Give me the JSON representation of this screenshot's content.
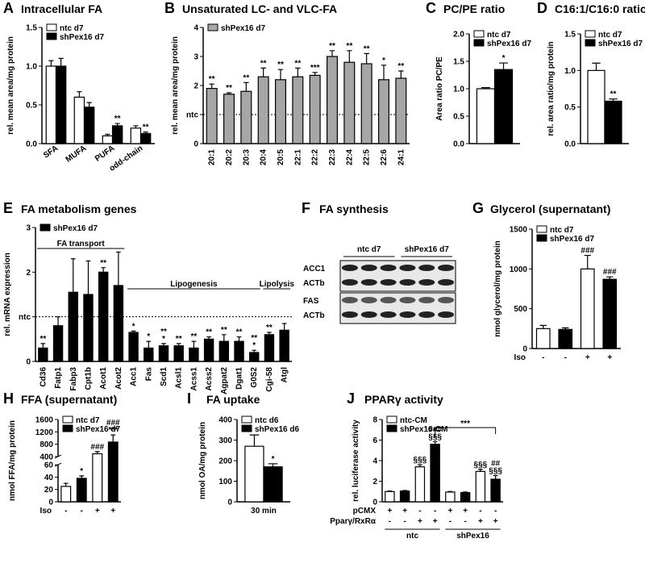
{
  "chart_data": [
    {
      "panel": "A",
      "type": "bar",
      "title": "Intracellular FA",
      "ylabel": "rel. mean area/mg protein",
      "categories": [
        "SFA",
        "MUFA",
        "PUFA",
        "odd-chain"
      ],
      "series": [
        {
          "name": "ntc d7",
          "color": "#ffffff",
          "values": [
            1.0,
            0.6,
            0.1,
            0.2
          ],
          "errors": [
            0.07,
            0.07,
            0.02,
            0.03
          ],
          "annotations": [
            null,
            null,
            null,
            null
          ]
        },
        {
          "name": "shPex16 d7",
          "color": "#000000",
          "values": [
            1.0,
            0.47,
            0.23,
            0.13
          ],
          "errors": [
            0.1,
            0.06,
            0.03,
            0.02
          ],
          "annotations": [
            null,
            null,
            [
              "**"
            ],
            [
              "**"
            ]
          ]
        }
      ],
      "ylim": [
        0,
        1.5
      ],
      "yticks": [
        {
          "value": 0,
          "label": "0.0"
        },
        {
          "value": 0.5,
          "label": "0.5"
        },
        {
          "value": 1,
          "label": "1.0"
        },
        {
          "value": 1.5,
          "label": "1.5"
        }
      ],
      "legend": "upper left"
    },
    {
      "panel": "B",
      "type": "bar",
      "title": "Unsaturated LC- and VLC-FA",
      "ylabel": "rel. mean area/mg protein",
      "categories": [
        "20:1",
        "20:2",
        "20:3",
        "20:4",
        "20:5",
        "22:1",
        "22:2",
        "22:3",
        "22:4",
        "22:5",
        "22:6",
        "24:1"
      ],
      "series": [
        {
          "name": "shPex16 d7",
          "color": "#a6a6a6",
          "values": [
            1.9,
            1.7,
            1.8,
            2.3,
            2.2,
            2.3,
            2.35,
            3.0,
            2.8,
            2.75,
            2.2,
            2.25
          ],
          "errors": [
            0.15,
            0.05,
            0.3,
            0.3,
            0.35,
            0.3,
            0.1,
            0.2,
            0.4,
            0.35,
            0.5,
            0.25
          ],
          "annotations": [
            [
              "**"
            ],
            [
              "**"
            ],
            [
              "**"
            ],
            [
              "**"
            ],
            [
              "**"
            ],
            [
              "**"
            ],
            [
              "***"
            ],
            [
              "**"
            ],
            [
              "**"
            ],
            [
              "**"
            ],
            [
              "*"
            ],
            [
              "**"
            ]
          ]
        }
      ],
      "ylim": [
        0,
        4
      ],
      "yticks": [
        0,
        {
          "value": 1,
          "label": "ntc"
        },
        2,
        3,
        4
      ],
      "reference_line": 1,
      "legend": "upper left"
    },
    {
      "panel": "C",
      "type": "bar",
      "title": "PC/PE ratio",
      "ylabel": "Area ratio PC/PE",
      "categories": [
        null
      ],
      "series": [
        {
          "name": "ntc d7",
          "color": "#ffffff",
          "values": [
            1.0
          ],
          "errors": [
            0.02
          ],
          "annotations": [
            null
          ]
        },
        {
          "name": "shPex16 d7",
          "color": "#000000",
          "values": [
            1.35
          ],
          "errors": [
            0.12
          ],
          "annotations": [
            [
              "*"
            ]
          ]
        }
      ],
      "ylim": [
        0,
        2
      ],
      "yticks": [
        {
          "value": 0,
          "label": "0.0"
        },
        {
          "value": 0.5,
          "label": "0.5"
        },
        {
          "value": 1,
          "label": "1.0"
        },
        {
          "value": 1.5,
          "label": "1.5"
        },
        {
          "value": 2,
          "label": "2.0"
        }
      ],
      "legend": "upper left"
    },
    {
      "panel": "D",
      "type": "bar",
      "title": "C16:1/C16:0 ratio",
      "ylabel": "rel. area ratio/mg protein",
      "categories": [
        null
      ],
      "series": [
        {
          "name": "ntc d7",
          "color": "#ffffff",
          "values": [
            1.0
          ],
          "errors": [
            0.1
          ],
          "annotations": [
            null
          ]
        },
        {
          "name": "shPex16 d7",
          "color": "#000000",
          "values": [
            0.58
          ],
          "errors": [
            0.03
          ],
          "annotations": [
            [
              "**"
            ]
          ]
        }
      ],
      "ylim": [
        0,
        1.5
      ],
      "yticks": [
        {
          "value": 0,
          "label": "0.0"
        },
        {
          "value": 0.5,
          "label": "0.5"
        },
        {
          "value": 1,
          "label": "1.0"
        },
        {
          "value": 1.5,
          "label": "1.5"
        }
      ],
      "legend": "upper left"
    },
    {
      "panel": "E",
      "type": "bar",
      "title": "FA metabolism genes",
      "ylabel": "rel. mRNA expression",
      "categories": [
        "Cd36",
        "Fatp1",
        "Fabp3",
        "Cpt1b",
        "Acot1",
        "Acot2",
        "Acc1",
        "Fas",
        "Scd1",
        "Acsl1",
        "Acss1",
        "Acss2",
        "Agpat2",
        "Dgat1",
        "G0S2",
        "Cgi-58",
        "Atgl"
      ],
      "series": [
        {
          "name": "shPex16 d7",
          "color": "#000000",
          "values": [
            0.3,
            0.8,
            1.55,
            1.5,
            2.0,
            1.7,
            0.65,
            0.3,
            0.35,
            0.35,
            0.3,
            0.5,
            0.45,
            0.45,
            0.2,
            0.6,
            0.7
          ],
          "errors": [
            0.1,
            0.2,
            0.75,
            0.75,
            0.1,
            0.75,
            0.03,
            0.15,
            0.05,
            0.05,
            0.15,
            0.05,
            0.15,
            0.1,
            0.05,
            0.05,
            0.15
          ],
          "annotations": [
            [
              "**"
            ],
            null,
            null,
            null,
            [
              "**"
            ],
            null,
            [
              "*"
            ],
            [
              "*"
            ],
            [
              "**",
              "*"
            ],
            [
              "**"
            ],
            [
              "**"
            ],
            [
              "**"
            ],
            [
              "**"
            ],
            [
              "**"
            ],
            [
              "**",
              "*"
            ],
            [
              "**"
            ],
            null
          ]
        }
      ],
      "groups": [
        {
          "label": "FA transport",
          "from": 0,
          "to": 5
        },
        {
          "label": "Lipogenesis",
          "from": 6,
          "to": 14
        },
        {
          "label": "Lipolysis",
          "from": 15,
          "to": 16
        }
      ],
      "ylim": [
        0,
        3
      ],
      "yticks": [
        0,
        {
          "value": 1,
          "label": "ntc"
        },
        2,
        3
      ],
      "reference_line": 1,
      "legend": "upper left"
    },
    {
      "panel": "F",
      "type": "blot",
      "title": "FA synthesis",
      "lane_groups": [
        "ntc d7",
        "shPex16 d7"
      ],
      "rows": [
        "ACC1",
        "ACTb",
        "FAS",
        "ACTb"
      ]
    },
    {
      "panel": "G",
      "type": "bar",
      "title": "Glycerol (supernatant)",
      "ylabel": "nmol glycerol/mg protein",
      "categories": [
        null,
        null,
        null,
        null
      ],
      "x_rows": [
        {
          "label": "Iso",
          "values": [
            "-",
            "-",
            "+",
            "+"
          ]
        }
      ],
      "series": [
        {
          "name": "ntc d7",
          "color": "#ffffff",
          "values": [
            250,
            null,
            1000,
            null
          ],
          "errors": [
            40,
            null,
            170,
            null
          ],
          "annotations": [
            null,
            null,
            [
              "###"
            ],
            null
          ]
        },
        {
          "name": "shPex16 d7",
          "color": "#000000",
          "values": [
            null,
            240,
            null,
            870
          ],
          "errors": [
            null,
            20,
            null,
            30
          ],
          "annotations": [
            null,
            null,
            null,
            [
              "###"
            ]
          ]
        }
      ],
      "ylim": [
        0,
        1500
      ],
      "yticks": [
        0,
        500,
        1000,
        1500
      ],
      "legend": "upper left"
    },
    {
      "panel": "H",
      "type": "bar",
      "title": "FFA (supernatant)",
      "ylabel": "nmol FFA/mg protein",
      "categories": [
        null,
        null,
        null,
        null
      ],
      "x_rows": [
        {
          "label": "Iso",
          "values": [
            "-",
            "-",
            "+",
            "+"
          ]
        }
      ],
      "series": [
        {
          "name": "ntc d7",
          "color": "#ffffff",
          "values": [
            25,
            null,
            490,
            null
          ],
          "errors": [
            5,
            null,
            70,
            null
          ],
          "annotations": [
            null,
            null,
            [
              "###"
            ],
            null
          ]
        },
        {
          "name": "shPex16 d7",
          "color": "#000000",
          "values": [
            null,
            38,
            null,
            870
          ],
          "errors": [
            null,
            4,
            null,
            230
          ],
          "annotations": [
            null,
            [
              "*"
            ],
            null,
            [
              "###",
              "***"
            ]
          ]
        }
      ],
      "ylim": [
        0,
        1600
      ],
      "axis_break": [
        60,
        400
      ],
      "yticks": [
        0,
        20,
        40,
        60,
        400,
        800,
        1200,
        1600
      ],
      "legend": "upper left"
    },
    {
      "panel": "I",
      "type": "bar",
      "title": "FA uptake",
      "ylabel": "nmol OA/mg protein",
      "categories": [
        "30 min"
      ],
      "series": [
        {
          "name": "ntc d6",
          "color": "#ffffff",
          "values": [
            270
          ],
          "errors": [
            55
          ],
          "annotations": [
            null
          ]
        },
        {
          "name": "shPex16 d6",
          "color": "#000000",
          "values": [
            170
          ],
          "errors": [
            15
          ],
          "annotations": [
            [
              "*"
            ]
          ]
        }
      ],
      "ylim": [
        0,
        400
      ],
      "yticks": [
        0,
        100,
        200,
        300,
        400
      ],
      "legend": "upper left"
    },
    {
      "panel": "J",
      "type": "bar",
      "title": "PPARγ activity",
      "ylabel": "rel. luciferase activity",
      "categories": [
        null,
        null,
        null,
        null,
        null,
        null,
        null,
        null
      ],
      "x_rows": [
        {
          "label": "pCMX",
          "values": [
            "+",
            "+",
            "-",
            "-",
            "+",
            "+",
            "-",
            "-"
          ]
        },
        {
          "label": "Pparγ/RxRα",
          "values": [
            "-",
            "-",
            "+",
            "+",
            "-",
            "-",
            "+",
            "+"
          ]
        }
      ],
      "x_groups": [
        {
          "label": "ntc",
          "from": 0,
          "to": 3
        },
        {
          "label": "shPex16",
          "from": 4,
          "to": 7
        }
      ],
      "series": [
        {
          "name": "ntc-CM",
          "color": "#ffffff",
          "values": [
            1.0,
            null,
            3.4,
            null,
            0.95,
            null,
            2.95,
            null
          ],
          "errors": [
            0.05,
            null,
            0.2,
            null,
            0.05,
            null,
            0.2,
            null
          ],
          "annotations": [
            null,
            null,
            [
              "§§§"
            ],
            null,
            null,
            null,
            [
              "§§§"
            ],
            null
          ]
        },
        {
          "name": "shPex16-CM",
          "color": "#000000",
          "values": [
            null,
            1.05,
            null,
            5.6,
            null,
            0.9,
            null,
            2.2
          ],
          "errors": [
            null,
            0.05,
            null,
            0.25,
            null,
            0.05,
            null,
            0.35
          ],
          "annotations": [
            null,
            null,
            null,
            [
              "###",
              "§§§"
            ],
            null,
            null,
            null,
            [
              "##",
              "§§§"
            ]
          ]
        }
      ],
      "brackets": [
        {
          "label": "***",
          "from": 3,
          "to": 7
        }
      ],
      "ylim": [
        0,
        8
      ],
      "yticks": [
        0,
        2,
        4,
        6,
        8
      ],
      "legend": "upper left"
    }
  ]
}
